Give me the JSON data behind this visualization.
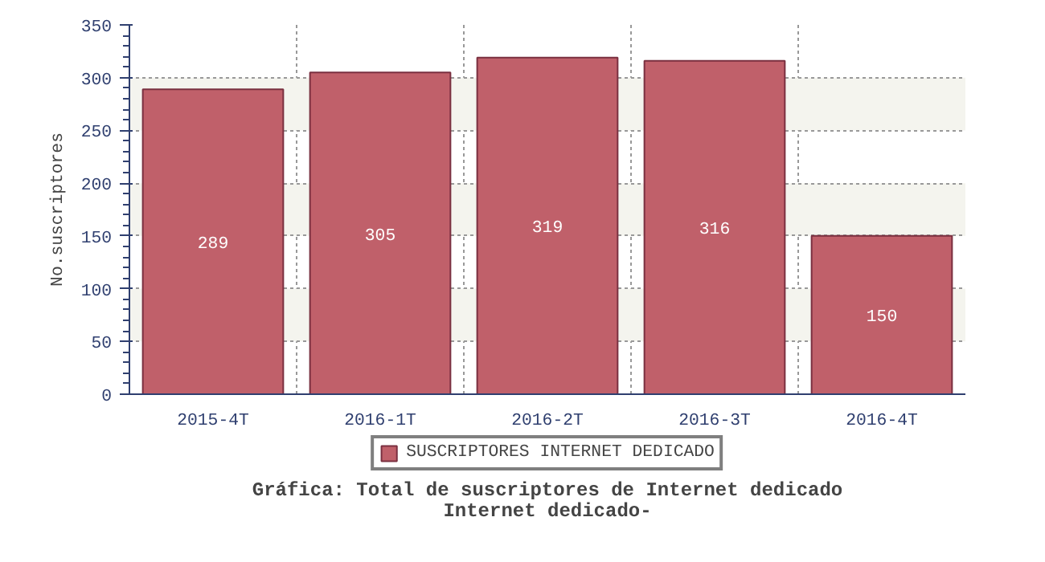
{
  "chart_data": {
    "type": "bar",
    "title": "Gráfica: Total de suscriptores de Internet dedicado",
    "subtitle": "Internet dedicado-",
    "ylabel": "No.suscriptores",
    "categories": [
      "2015-4T",
      "2016-1T",
      "2016-2T",
      "2016-3T",
      "2016-4T"
    ],
    "series": [
      {
        "name": "SUSCRIPTORES INTERNET DEDICADO",
        "color": "#c0606a",
        "values": [
          289,
          305,
          319,
          316,
          150
        ]
      }
    ],
    "ylim": [
      0,
      350
    ],
    "yticks": [
      0,
      50,
      100,
      150,
      200,
      250,
      300,
      350
    ],
    "grid": true,
    "legend": "bottom",
    "data_labels": true
  }
}
